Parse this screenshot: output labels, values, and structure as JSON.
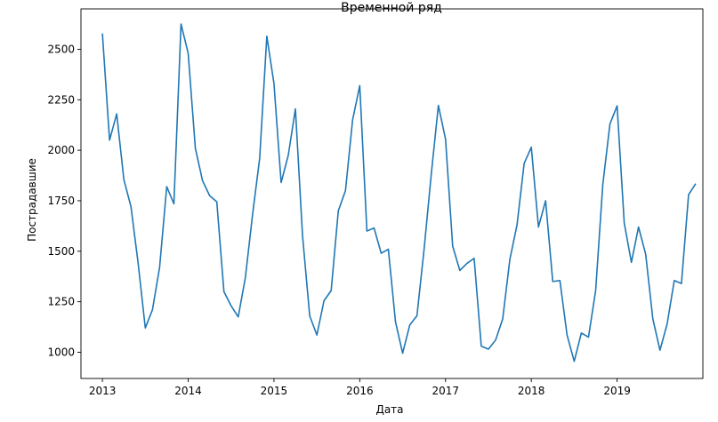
{
  "chart_data": {
    "type": "line",
    "title": "Временной ряд",
    "xlabel": "Дата",
    "ylabel": "Пострадавшие",
    "x_ticks": [
      "2013",
      "2014",
      "2015",
      "2016",
      "2017",
      "2018",
      "2019"
    ],
    "y_ticks": [
      1000,
      1250,
      1500,
      1750,
      2000,
      2250,
      2500
    ],
    "ylim": [
      870,
      2700
    ],
    "xlim": [
      "2012-10",
      "2020-01"
    ],
    "grid": false,
    "line_color": "#1f77b4",
    "series": [
      {
        "x": [
          "2013-01",
          "2013-02",
          "2013-03",
          "2013-04",
          "2013-05",
          "2013-06",
          "2013-07",
          "2013-08",
          "2013-09",
          "2013-10",
          "2013-11",
          "2013-12",
          "2014-01",
          "2014-02",
          "2014-03",
          "2014-04",
          "2014-05",
          "2014-06",
          "2014-07",
          "2014-08",
          "2014-09",
          "2014-10",
          "2014-11",
          "2014-12",
          "2015-01",
          "2015-02",
          "2015-03",
          "2015-04",
          "2015-05",
          "2015-06",
          "2015-07",
          "2015-08",
          "2015-09",
          "2015-10",
          "2015-11",
          "2015-12",
          "2016-01",
          "2016-02",
          "2016-03",
          "2016-04",
          "2016-05",
          "2016-06",
          "2016-07",
          "2016-08",
          "2016-09",
          "2016-10",
          "2016-11",
          "2016-12",
          "2017-01",
          "2017-02",
          "2017-03",
          "2017-04",
          "2017-05",
          "2017-06",
          "2017-07",
          "2017-08",
          "2017-09",
          "2017-10",
          "2017-11",
          "2017-12",
          "2018-01",
          "2018-02",
          "2018-03",
          "2018-04",
          "2018-05",
          "2018-06",
          "2018-07",
          "2018-08",
          "2018-09",
          "2018-10",
          "2018-11",
          "2018-12",
          "2019-01",
          "2019-02",
          "2019-03",
          "2019-04",
          "2019-05",
          "2019-06",
          "2019-07",
          "2019-08",
          "2019-09",
          "2019-10",
          "2019-11",
          "2019-12"
        ],
        "values": [
          2578,
          2050,
          2180,
          1855,
          1720,
          1440,
          1120,
          1210,
          1420,
          1820,
          1735,
          2625,
          2480,
          2010,
          1850,
          1775,
          1745,
          1300,
          1230,
          1175,
          1370,
          1680,
          1960,
          2565,
          2330,
          1840,
          1975,
          2205,
          1575,
          1180,
          1085,
          1255,
          1305,
          1700,
          1800,
          2150,
          2320,
          1600,
          1615,
          1490,
          1510,
          1150,
          995,
          1135,
          1180,
          1510,
          1880,
          2222,
          2055,
          1525,
          1405,
          1440,
          1465,
          1030,
          1015,
          1060,
          1165,
          1460,
          1630,
          1935,
          2015,
          1620,
          1750,
          1350,
          1355,
          1085,
          955,
          1095,
          1075,
          1305,
          1830,
          2130,
          2220,
          1640,
          1445,
          1620,
          1485,
          1165,
          1010,
          1140,
          1355,
          1340,
          1780,
          1835
        ]
      }
    ]
  }
}
